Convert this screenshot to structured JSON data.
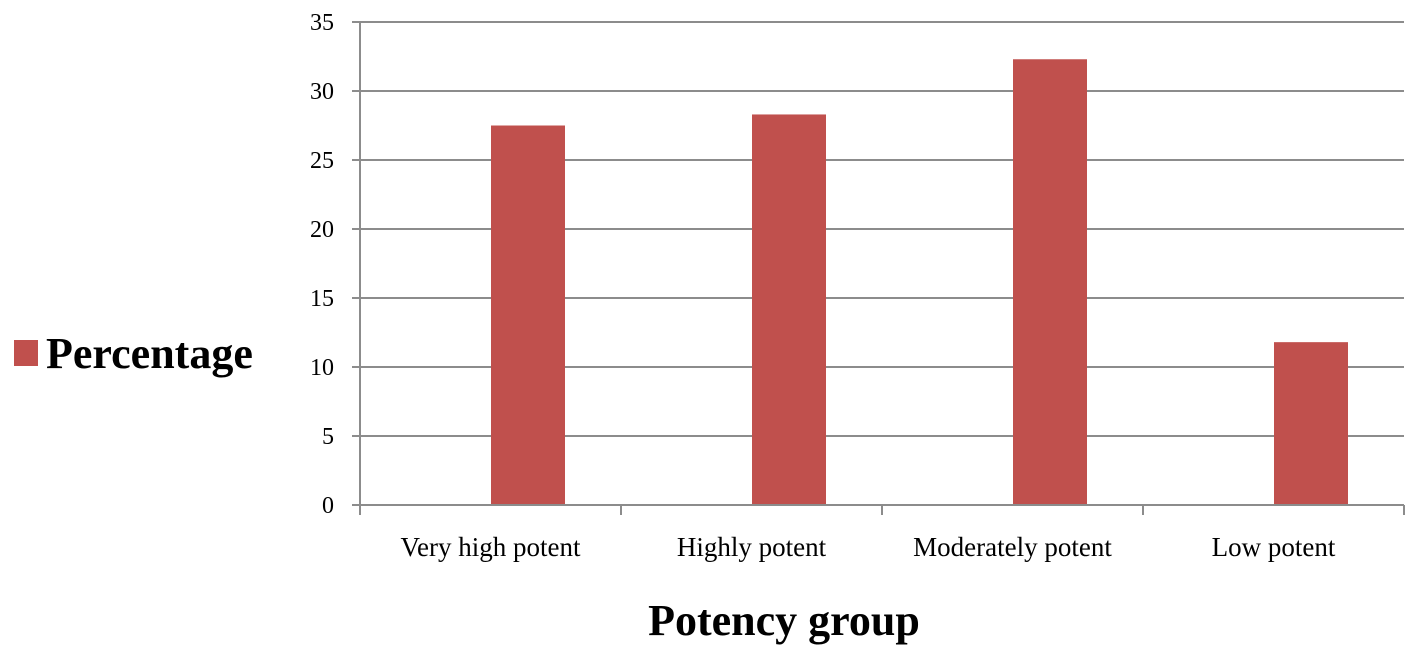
{
  "chart_data": {
    "type": "bar",
    "categories": [
      "Very high potent",
      "Highly potent",
      "Moderately potent",
      "Low potent"
    ],
    "series": [
      {
        "name": "Percentage",
        "values": [
          27.5,
          28.3,
          32.3,
          11.8
        ],
        "color": "#C0504D"
      }
    ],
    "xlabel": "Potency group",
    "ylabel": "",
    "ylim": [
      0,
      35
    ],
    "yticks": [
      0,
      5,
      10,
      15,
      20,
      25,
      30,
      35
    ],
    "grid": true,
    "legend_position": "left"
  }
}
